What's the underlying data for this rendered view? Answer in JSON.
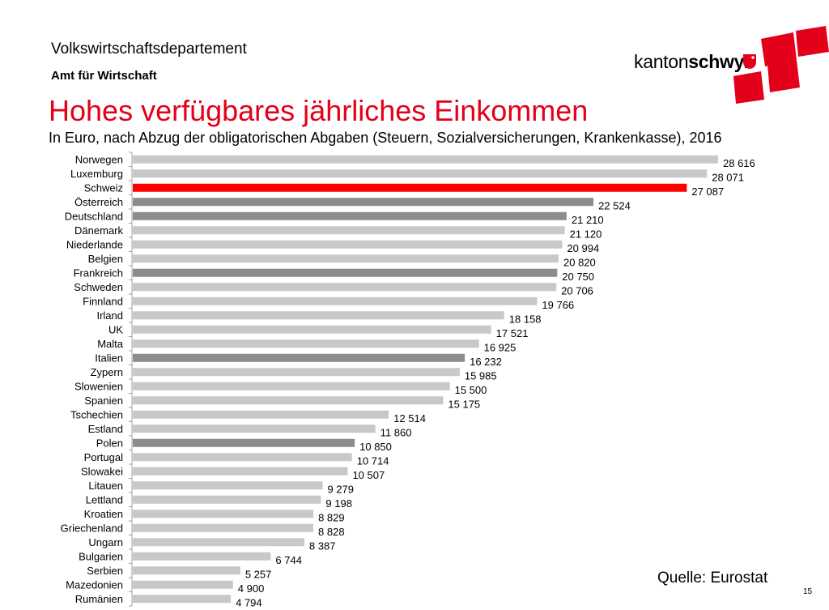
{
  "header": {
    "department": "Volkswirtschaftsdepartement",
    "office": "Amt für Wirtschaft",
    "logo_part1": "kanton",
    "logo_part2": "schwyz"
  },
  "colors": {
    "brand_red": "#e2001a",
    "highlight_bar": "#ff0000",
    "dark_bar": "#8c8c8c",
    "light_bar": "#c8c8c8"
  },
  "slide": {
    "title": "Hohes verfügbares jährliches Einkommen",
    "subtitle": "In Euro, nach Abzug der obligatorischen Abgaben (Steuern, Sozialversicherungen, Krankenkasse), 2016",
    "source": "Quelle: Eurostat",
    "page_number": "15"
  },
  "chart_data": {
    "type": "bar",
    "orientation": "horizontal",
    "title": "Hohes verfügbares jährliches Einkommen",
    "xlim": [
      0,
      28616
    ],
    "grid": false,
    "categories": [
      "Norwegen",
      "Luxemburg",
      "Schweiz",
      "Österreich",
      "Deutschland",
      "Dänemark",
      "Niederlande",
      "Belgien",
      "Frankreich",
      "Schweden",
      "Finnland",
      "Irland",
      "UK",
      "Malta",
      "Italien",
      "Zypern",
      "Slowenien",
      "Spanien",
      "Tschechien",
      "Estland",
      "Polen",
      "Portugal",
      "Slowakei",
      "Litauen",
      "Lettland",
      "Kroatien",
      "Griechenland",
      "Ungarn",
      "Bulgarien",
      "Serbien",
      "Mazedonien",
      "Rumänien"
    ],
    "values": [
      28616,
      28071,
      27087,
      22524,
      21210,
      21120,
      20994,
      20820,
      20750,
      20706,
      19766,
      18158,
      17521,
      16925,
      16232,
      15985,
      15500,
      15175,
      12514,
      11860,
      10850,
      10714,
      10507,
      9279,
      9198,
      8829,
      8828,
      8387,
      6744,
      5257,
      4900,
      4794
    ],
    "value_labels": [
      "28 616",
      "28 071",
      "27 087",
      "22 524",
      "21 210",
      "21 120",
      "20 994",
      "20 820",
      "20 750",
      "20 706",
      "19 766",
      "18 158",
      "17 521",
      "16 925",
      "16 232",
      "15 985",
      "15 500",
      "15 175",
      "12 514",
      "11 860",
      "10 850",
      "10 714",
      "10 507",
      "9 279",
      "9 198",
      "8 829",
      "8 828",
      "8 387",
      "6 744",
      "5 257",
      "4 900",
      "4 794"
    ],
    "bar_styles": [
      "light",
      "light",
      "highlight",
      "dark",
      "dark",
      "light",
      "light",
      "light",
      "dark",
      "light",
      "light",
      "light",
      "light",
      "light",
      "dark",
      "light",
      "light",
      "light",
      "light",
      "light",
      "dark",
      "light",
      "light",
      "light",
      "light",
      "light",
      "light",
      "light",
      "light",
      "light",
      "light",
      "light"
    ]
  }
}
